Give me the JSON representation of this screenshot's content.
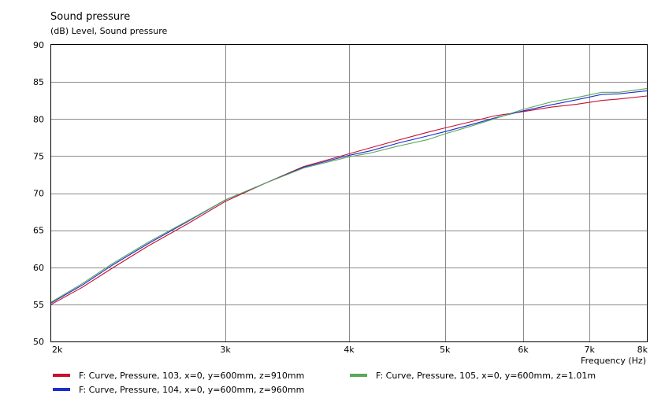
{
  "chart_data": {
    "type": "line",
    "title": "Sound pressure",
    "subtitle": "(dB)  Level, Sound pressure",
    "xlabel": "Frequency  (Hz)",
    "x_scale": "log",
    "xlim": [
      2000,
      8000
    ],
    "ylim": [
      50,
      90
    ],
    "x_ticks": [
      {
        "value": 2000,
        "label": "2k"
      },
      {
        "value": 3000,
        "label": "3k"
      },
      {
        "value": 4000,
        "label": "4k"
      },
      {
        "value": 5000,
        "label": "5k"
      },
      {
        "value": 6000,
        "label": "6k"
      },
      {
        "value": 7000,
        "label": "7k"
      },
      {
        "value": 8000,
        "label": "8k"
      }
    ],
    "y_ticks": [
      50,
      55,
      60,
      65,
      70,
      75,
      80,
      85,
      90
    ],
    "grid": true,
    "legend_position": "bottom",
    "series": [
      {
        "name": "F: Curve, Pressure, 103, x=0, y=600mm, z=910mm",
        "color": "#c8102e",
        "points": [
          [
            2000,
            55.0
          ],
          [
            2150,
            57.3
          ],
          [
            2300,
            59.8
          ],
          [
            2500,
            62.8
          ],
          [
            2750,
            65.9
          ],
          [
            3000,
            68.9
          ],
          [
            3300,
            71.4
          ],
          [
            3600,
            73.6
          ],
          [
            4000,
            75.3
          ],
          [
            4200,
            76.1
          ],
          [
            4500,
            77.2
          ],
          [
            4800,
            78.2
          ],
          [
            5000,
            78.8
          ],
          [
            5300,
            79.6
          ],
          [
            5600,
            80.4
          ],
          [
            6000,
            81.0
          ],
          [
            6400,
            81.6
          ],
          [
            6800,
            82.0
          ],
          [
            7200,
            82.5
          ],
          [
            7500,
            82.7
          ],
          [
            8000,
            83.1
          ]
        ]
      },
      {
        "name": "F: Curve, Pressure, 104, x=0, y=600mm, z=960mm",
        "color": "#1f2ccf",
        "points": [
          [
            2000,
            55.2
          ],
          [
            2150,
            57.6
          ],
          [
            2300,
            60.2
          ],
          [
            2500,
            63.1
          ],
          [
            2750,
            66.2
          ],
          [
            3000,
            69.1
          ],
          [
            3300,
            71.4
          ],
          [
            3600,
            73.5
          ],
          [
            4000,
            75.1
          ],
          [
            4200,
            75.7
          ],
          [
            4500,
            76.8
          ],
          [
            4800,
            77.7
          ],
          [
            5000,
            78.3
          ],
          [
            5300,
            79.2
          ],
          [
            5600,
            80.1
          ],
          [
            6000,
            81.1
          ],
          [
            6400,
            81.9
          ],
          [
            6800,
            82.6
          ],
          [
            7200,
            83.3
          ],
          [
            7500,
            83.4
          ],
          [
            8000,
            83.8
          ]
        ]
      },
      {
        "name": "F: Curve, Pressure, 105, x=0, y=600mm, z=1.01m",
        "color": "#5aa85a",
        "points": [
          [
            2000,
            55.3
          ],
          [
            2150,
            57.8
          ],
          [
            2300,
            60.4
          ],
          [
            2500,
            63.3
          ],
          [
            2750,
            66.3
          ],
          [
            3000,
            69.1
          ],
          [
            3300,
            71.4
          ],
          [
            3600,
            73.4
          ],
          [
            4000,
            74.9
          ],
          [
            4200,
            75.4
          ],
          [
            4500,
            76.4
          ],
          [
            4800,
            77.2
          ],
          [
            5000,
            78.0
          ],
          [
            5300,
            79.0
          ],
          [
            5600,
            80.0
          ],
          [
            6000,
            81.3
          ],
          [
            6400,
            82.3
          ],
          [
            6800,
            82.9
          ],
          [
            7200,
            83.6
          ],
          [
            7500,
            83.6
          ],
          [
            8000,
            84.1
          ]
        ]
      }
    ]
  }
}
